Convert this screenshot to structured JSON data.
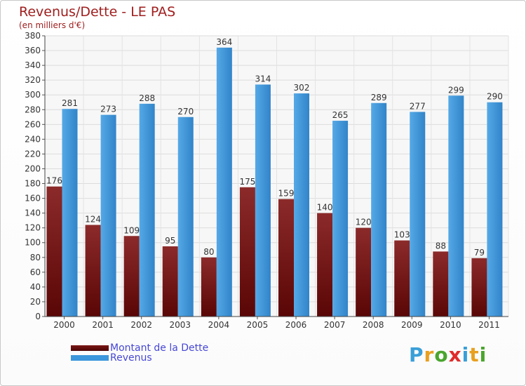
{
  "title": "Revenus/Dette - LE PAS",
  "subtitle": "(en milliers d'€)",
  "logo": {
    "letters": [
      "P",
      "r",
      "o",
      "x",
      "i",
      "t",
      "i"
    ],
    "colors": [
      "#3a9fd8",
      "#e8a020",
      "#4aa52e",
      "#e02b2b",
      "#3a9fd8",
      "#e8a020",
      "#4aa52e"
    ]
  },
  "chart_data": {
    "type": "bar",
    "categories": [
      "2000",
      "2001",
      "2002",
      "2003",
      "2004",
      "2005",
      "2006",
      "2007",
      "2008",
      "2009",
      "2010",
      "2011"
    ],
    "series": [
      {
        "name": "Montant de la Dette",
        "color": "#7a1515",
        "values": [
          176,
          124,
          109,
          95,
          80,
          175,
          159,
          140,
          120,
          103,
          88,
          79
        ]
      },
      {
        "name": "Revenus",
        "color": "#3d97dc",
        "values": [
          281,
          273,
          288,
          270,
          364,
          314,
          302,
          265,
          289,
          277,
          299,
          290
        ]
      }
    ],
    "ylim": [
      0,
      380
    ],
    "ytick_step": 20,
    "grid": true,
    "legend": "bottom-left"
  }
}
